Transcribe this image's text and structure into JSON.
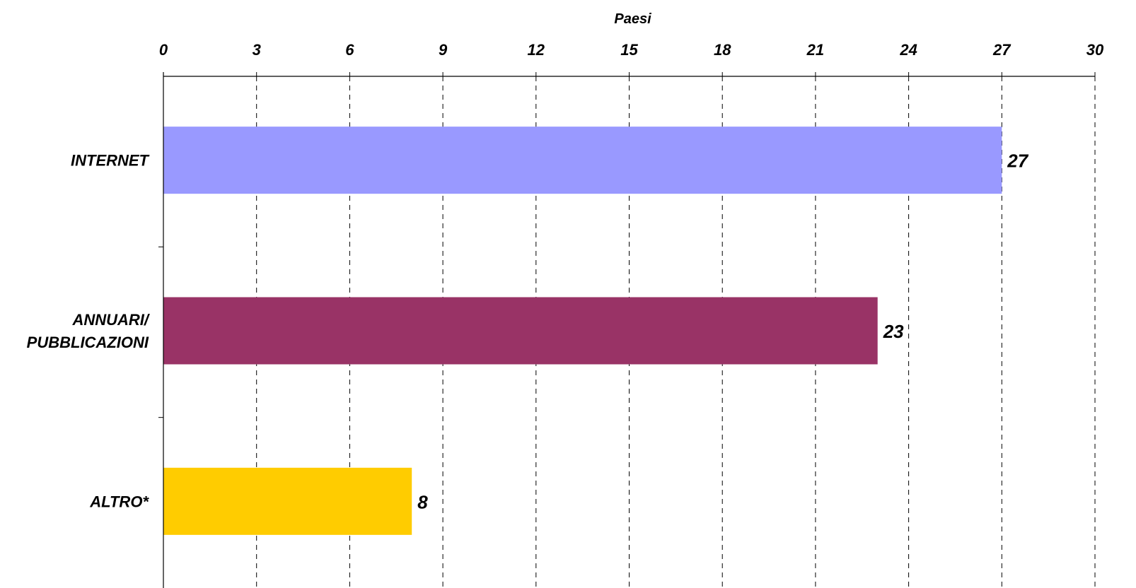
{
  "chart_data": {
    "type": "bar",
    "orientation": "horizontal",
    "xlabel": "Paesi",
    "xlim": [
      0,
      30
    ],
    "x_ticks": [
      "0",
      "3",
      "6",
      "9",
      "12",
      "15",
      "18",
      "21",
      "24",
      "27",
      "30"
    ],
    "categories": [
      [
        "INTERNET"
      ],
      [
        "ANNUARI/",
        "PUBBLICAZIONI"
      ],
      [
        "ALTRO*"
      ]
    ],
    "values": [
      27,
      23,
      8
    ],
    "data_labels": [
      "27",
      "23",
      "8"
    ],
    "bar_colors": [
      "#9999FF",
      "#993366",
      "#FFCC00"
    ],
    "grid": true,
    "x_axis_position": "top",
    "legend": "none"
  }
}
